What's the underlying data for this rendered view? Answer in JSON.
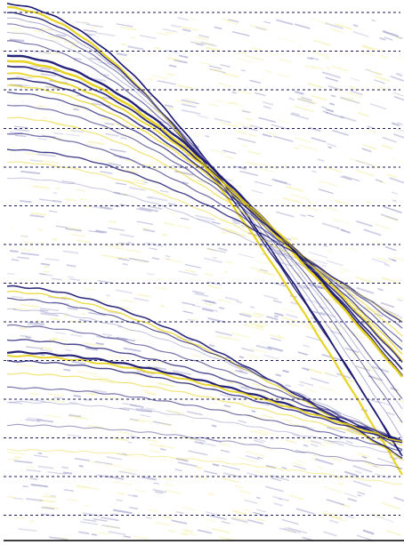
{
  "figure": {
    "kind": "seismic shot gather (wiggle/variable-density display)",
    "colors": {
      "background": "#ffffff",
      "positive_amplitude": "#e8d21a",
      "negative_amplitude": "#1a1670",
      "weak_positive": "#f3ec9a",
      "weak_negative": "#8f8fc4",
      "grid_line": "#1a1a5a",
      "axis_line": "#000000"
    },
    "horizontal_guides": 14,
    "guide_style": "dashed",
    "event_groups": [
      "upper-reflections",
      "lower-reflections"
    ]
  }
}
